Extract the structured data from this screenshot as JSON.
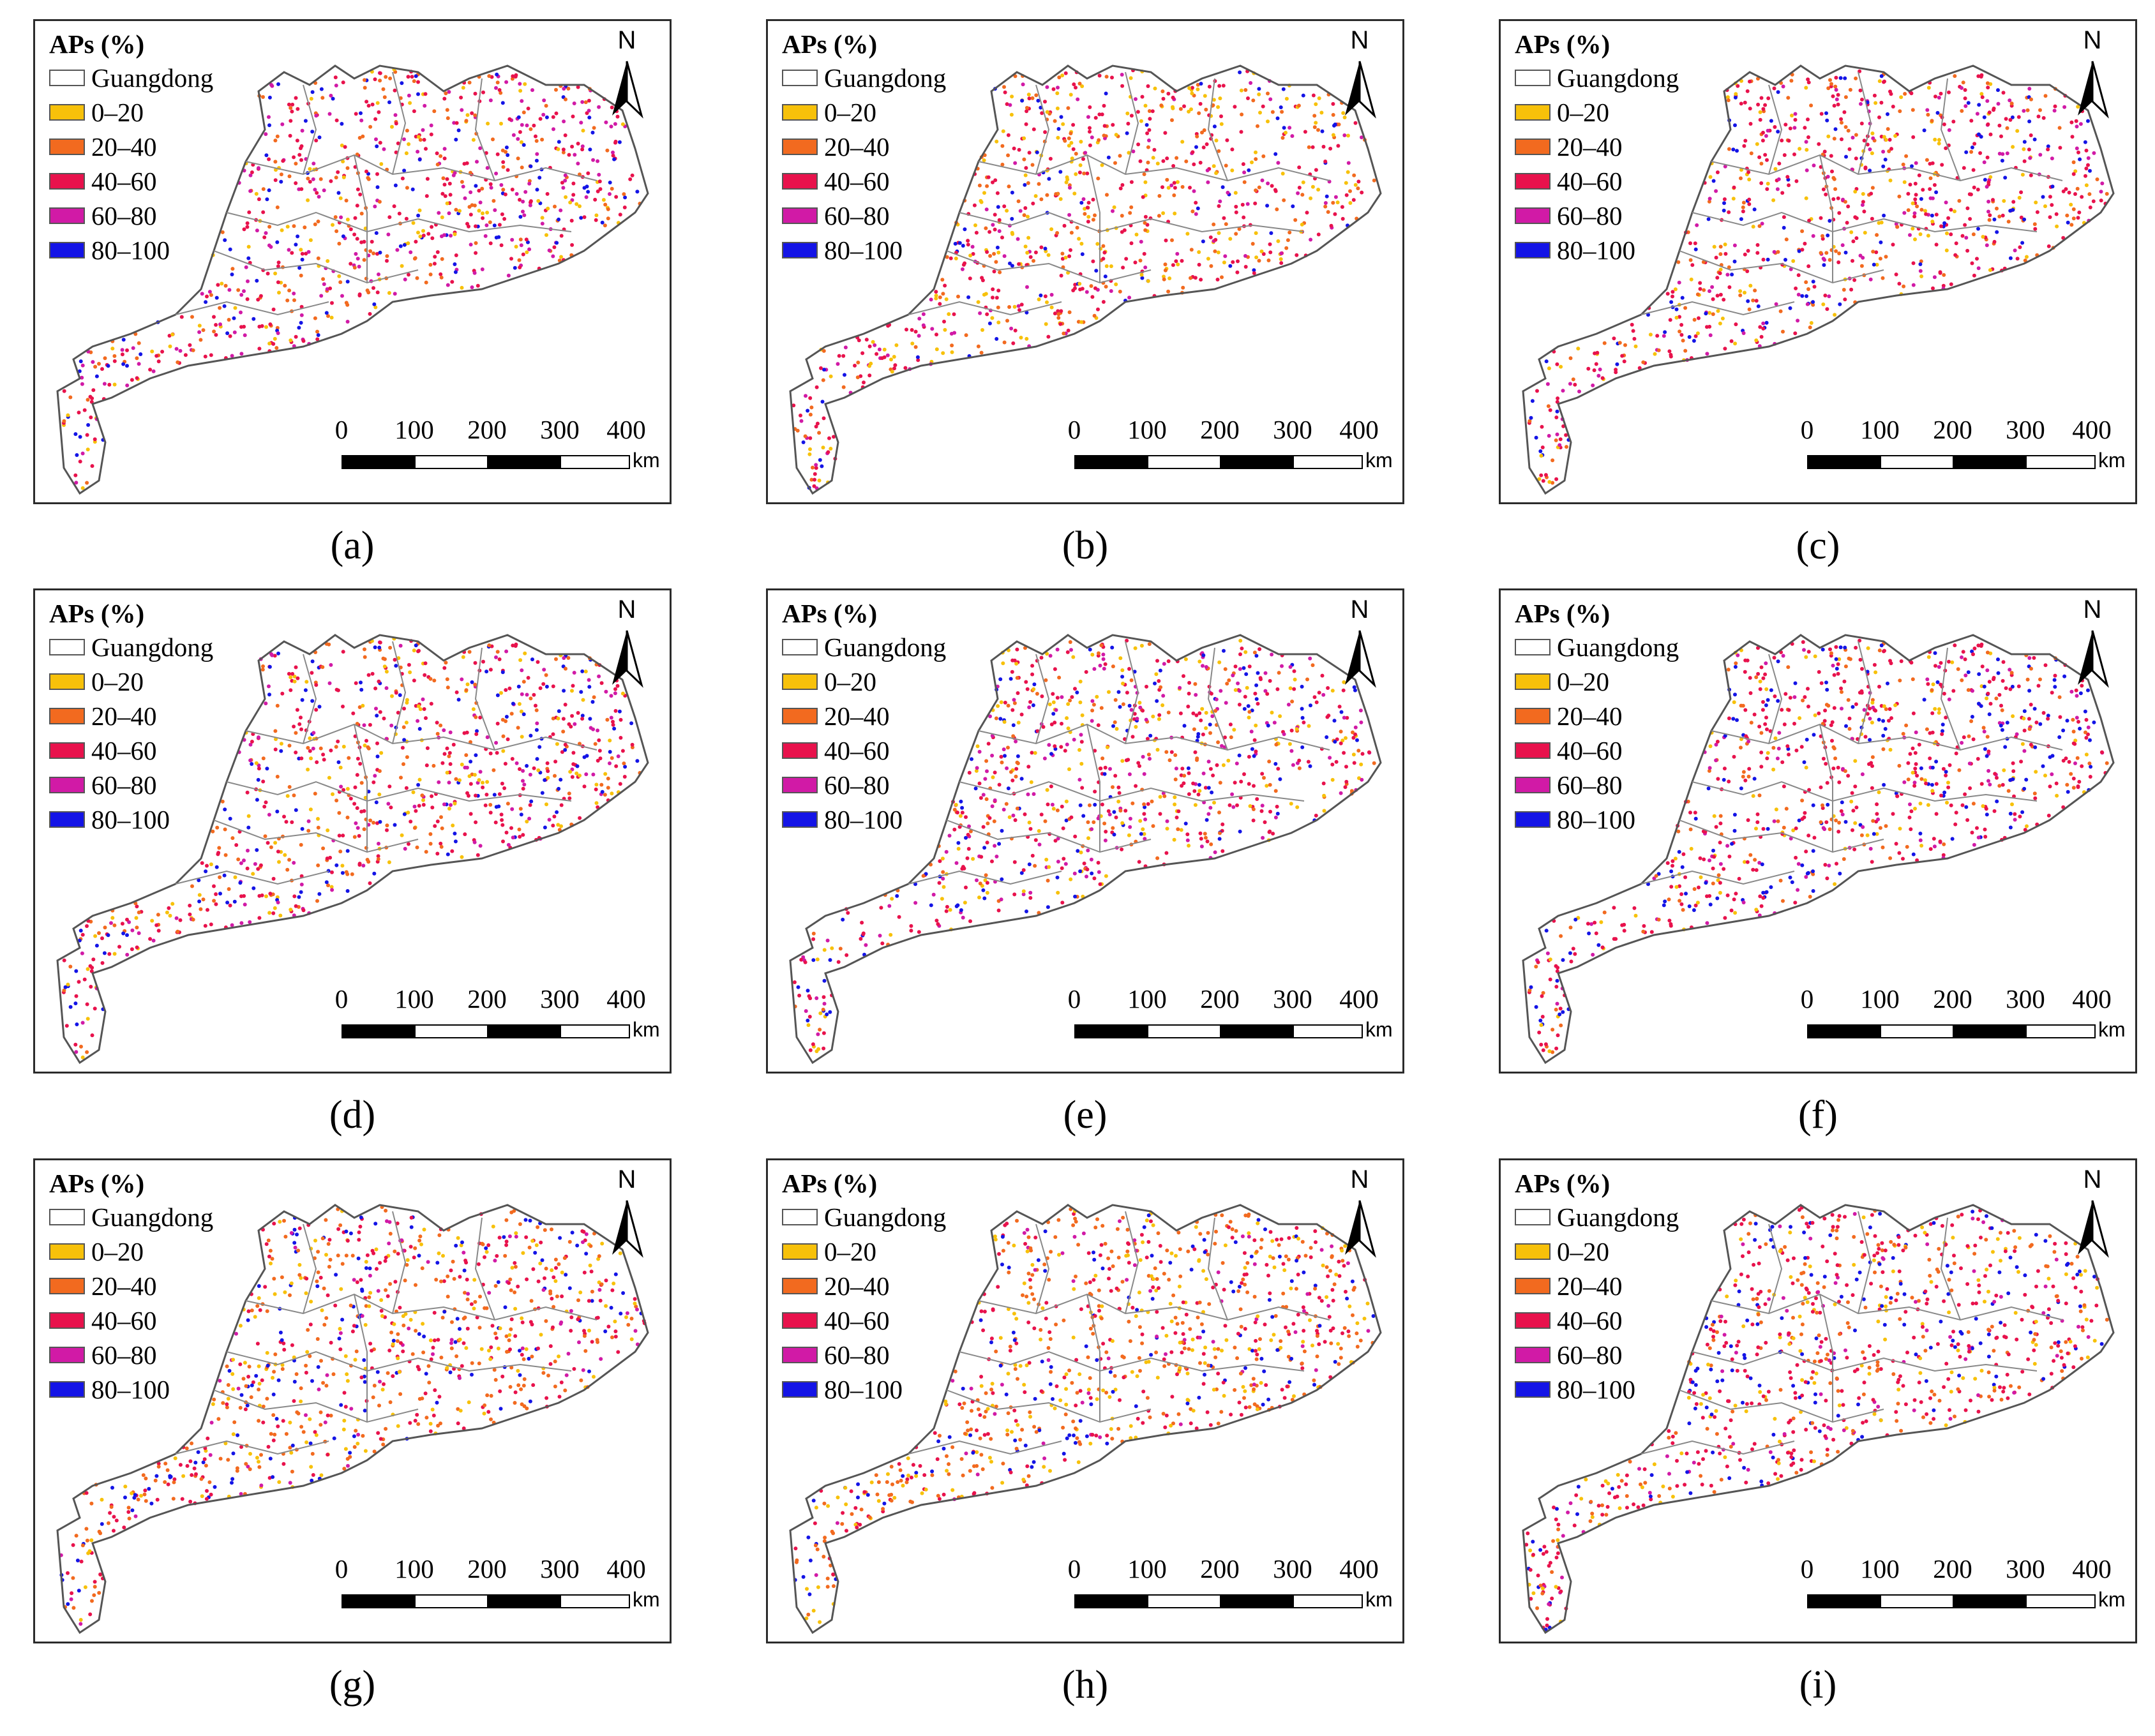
{
  "legend": {
    "title": "APs (%)",
    "items": [
      {
        "label": "Guangdong",
        "color": "#ffffff"
      },
      {
        "label": "0–20",
        "color": "#f7c10a"
      },
      {
        "label": "20–40",
        "color": "#f26a1f"
      },
      {
        "label": "40–60",
        "color": "#e8124c"
      },
      {
        "label": "60–80",
        "color": "#d11aa6"
      },
      {
        "label": "80–100",
        "color": "#1414e6"
      }
    ]
  },
  "north_label": "N",
  "scale": {
    "ticks": [
      "0",
      "100",
      "200",
      "300",
      "400"
    ],
    "unit": "km"
  },
  "panels": [
    {
      "caption": "(a)",
      "mix": [
        0.12,
        0.22,
        0.3,
        0.24,
        0.12
      ]
    },
    {
      "caption": "(b)",
      "mix": [
        0.22,
        0.24,
        0.34,
        0.1,
        0.1
      ]
    },
    {
      "caption": "(c)",
      "mix": [
        0.14,
        0.18,
        0.4,
        0.14,
        0.14
      ]
    },
    {
      "caption": "(d)",
      "mix": [
        0.14,
        0.2,
        0.34,
        0.16,
        0.16
      ]
    },
    {
      "caption": "(e)",
      "mix": [
        0.16,
        0.18,
        0.32,
        0.18,
        0.16
      ]
    },
    {
      "caption": "(f)",
      "mix": [
        0.12,
        0.16,
        0.4,
        0.12,
        0.2
      ]
    },
    {
      "caption": "(g)",
      "mix": [
        0.16,
        0.34,
        0.26,
        0.08,
        0.16
      ]
    },
    {
      "caption": "(h)",
      "mix": [
        0.2,
        0.34,
        0.26,
        0.06,
        0.14
      ]
    },
    {
      "caption": "(i)",
      "mix": [
        0.14,
        0.22,
        0.4,
        0.08,
        0.16
      ]
    }
  ]
}
